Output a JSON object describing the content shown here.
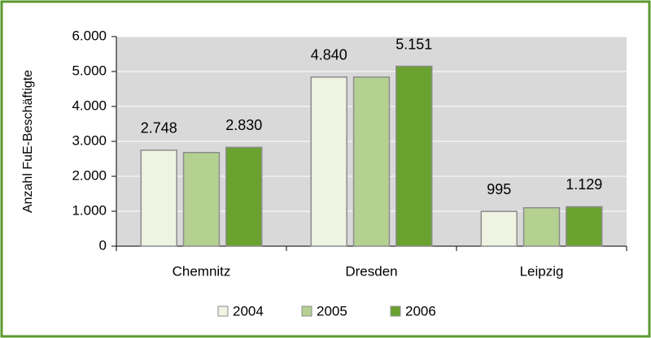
{
  "chart_data": {
    "type": "bar",
    "y_label": "Anzahl FuE-Beschäftigte",
    "categories": [
      "Chemnitz",
      "Dresden",
      "Leipzig"
    ],
    "series": [
      {
        "name": "2004",
        "color": "#eef3e2",
        "values": [
          2748,
          4840,
          995
        ],
        "value_labels": [
          "2.748",
          "4.840",
          "995"
        ]
      },
      {
        "name": "2005",
        "color": "#b5d192",
        "values": [
          2680,
          4840,
          1100
        ]
      },
      {
        "name": "2006",
        "color": "#6aa22f",
        "values": [
          2830,
          5151,
          1129
        ],
        "value_labels": [
          "2.830",
          "5.151",
          "1.129"
        ]
      }
    ],
    "ylim": [
      0,
      6000
    ],
    "yticks": [
      0,
      {
        "value": 1000,
        "label": "1.000"
      },
      {
        "value": 2000,
        "label": "2.000"
      },
      {
        "value": 3000,
        "label": "3.000"
      },
      {
        "value": 4000,
        "label": "4.000"
      },
      {
        "value": 5000,
        "label": "5.000"
      },
      {
        "value": 6000,
        "label": "6.000"
      }
    ],
    "grid": true,
    "legend": "bottom"
  }
}
